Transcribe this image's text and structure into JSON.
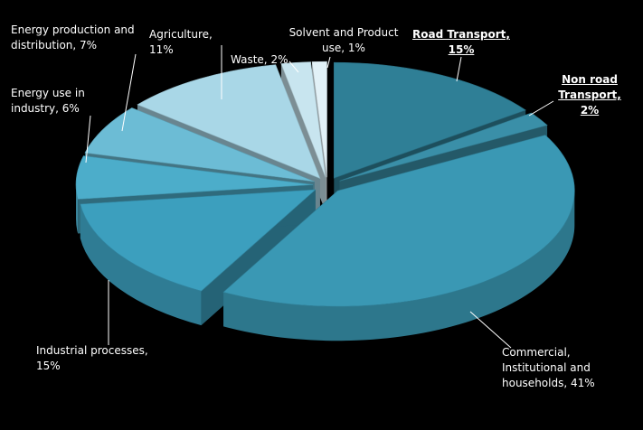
{
  "chart_data": {
    "type": "pie",
    "categories": [
      "Road Transport,",
      "Non road Transport,",
      "Commercial, Institutional and households,",
      "Industrial processes,",
      "Energy use in industry,",
      "Energy production and distribution,",
      "Agriculture,",
      "Waste,",
      "Solvent and Product use,"
    ],
    "values": [
      15,
      2,
      41,
      15,
      6,
      7,
      11,
      2,
      1
    ],
    "value_labels": [
      "15%",
      "2%",
      "41%",
      "15%",
      "6%",
      "7%",
      "11%",
      "2%",
      "1%"
    ],
    "colors": [
      "#2f7f96",
      "#3a8fa8",
      "#3a98b4",
      "#3c9fbe",
      "#4cadca",
      "#6cbcd5",
      "#a9d7e7",
      "#c8e5ef",
      "#e2f1f7"
    ]
  }
}
